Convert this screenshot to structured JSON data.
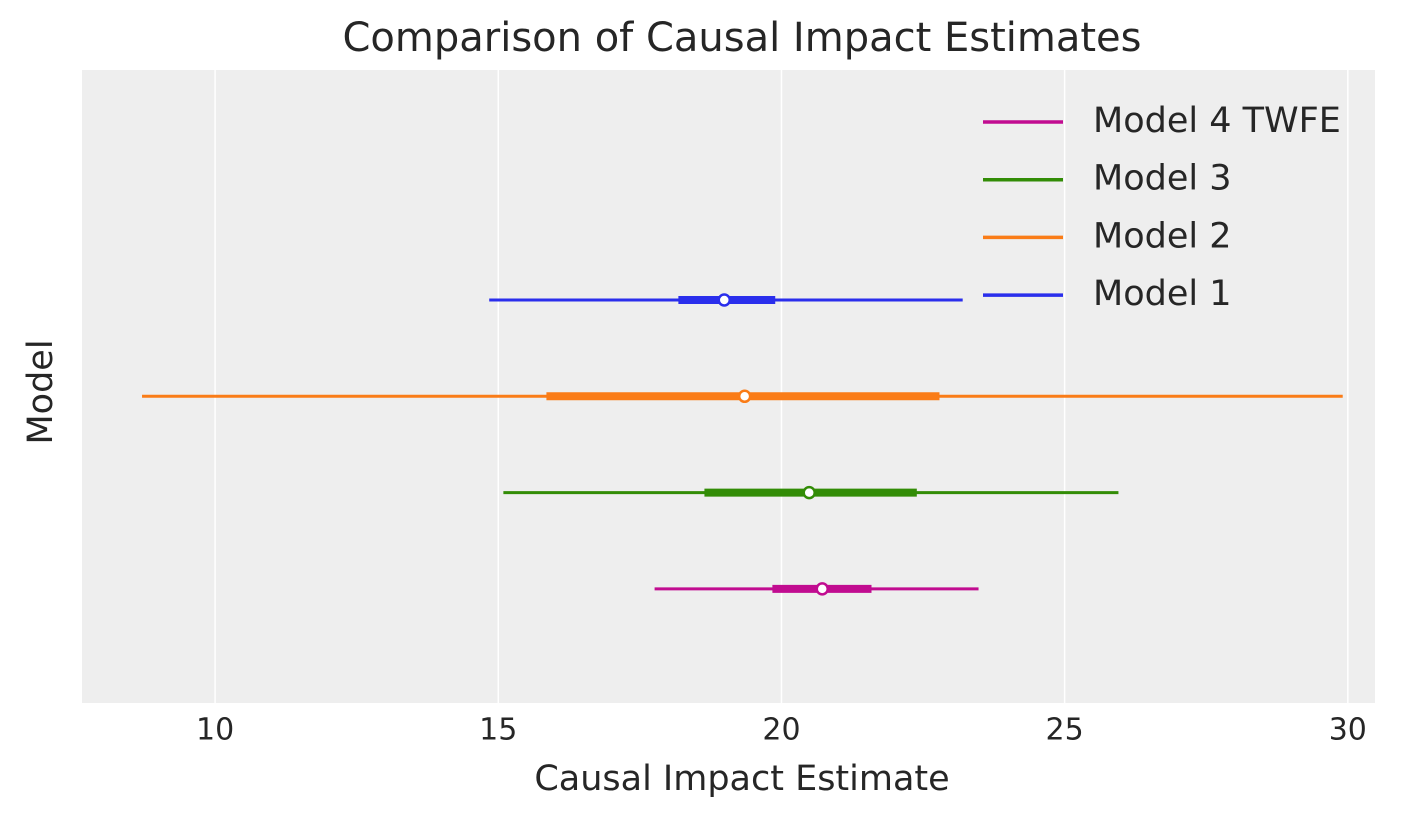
{
  "chart_data": {
    "type": "forest",
    "title": "Comparison of Causal Impact Estimates",
    "x_label": "Causal Impact Estimate",
    "y_label": "Model",
    "xlim": [
      7.65,
      30.48
    ],
    "xticks": [
      10,
      15,
      20,
      25,
      30
    ],
    "grid": true,
    "legend": "upper right",
    "series": [
      {
        "name": "Model 1",
        "color": "#2a2eec",
        "median": 18.99,
        "thin": [
          14.84,
          23.2
        ],
        "thick": [
          18.18,
          19.89
        ]
      },
      {
        "name": "Model 2",
        "color": "#fa7c17",
        "median": 19.35,
        "thin": [
          8.71,
          29.91
        ],
        "thick": [
          15.85,
          22.79
        ]
      },
      {
        "name": "Model 3",
        "color": "#328c06",
        "median": 20.49,
        "thin": [
          15.09,
          25.95
        ],
        "thick": [
          18.64,
          22.39
        ]
      },
      {
        "name": "Model 4 TWFE",
        "color": "#c10c90",
        "median": 20.72,
        "thin": [
          17.76,
          23.48
        ],
        "thick": [
          19.84,
          21.59
        ]
      }
    ]
  }
}
